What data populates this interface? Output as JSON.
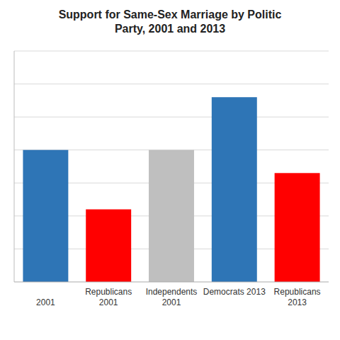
{
  "chart_data": {
    "type": "bar",
    "title": "Support for Same-Sex Marriage by Politic\nParty, 2001 and 2013",
    "categories": [
      "\n2001",
      "Republicans\n2001",
      "Independents\n2001",
      "Democrats 2013",
      "Republicans\n2013"
    ],
    "values": [
      40,
      22,
      40,
      56,
      33
    ],
    "colors": [
      "#2E75B6",
      "#FF0000",
      "#BFBFBF",
      "#2E75B6",
      "#FF0000"
    ],
    "ylim": [
      0,
      70
    ],
    "yticks": [
      10,
      20,
      30,
      40,
      50,
      60,
      70
    ],
    "grid": true,
    "tick_labels": "x"
  }
}
